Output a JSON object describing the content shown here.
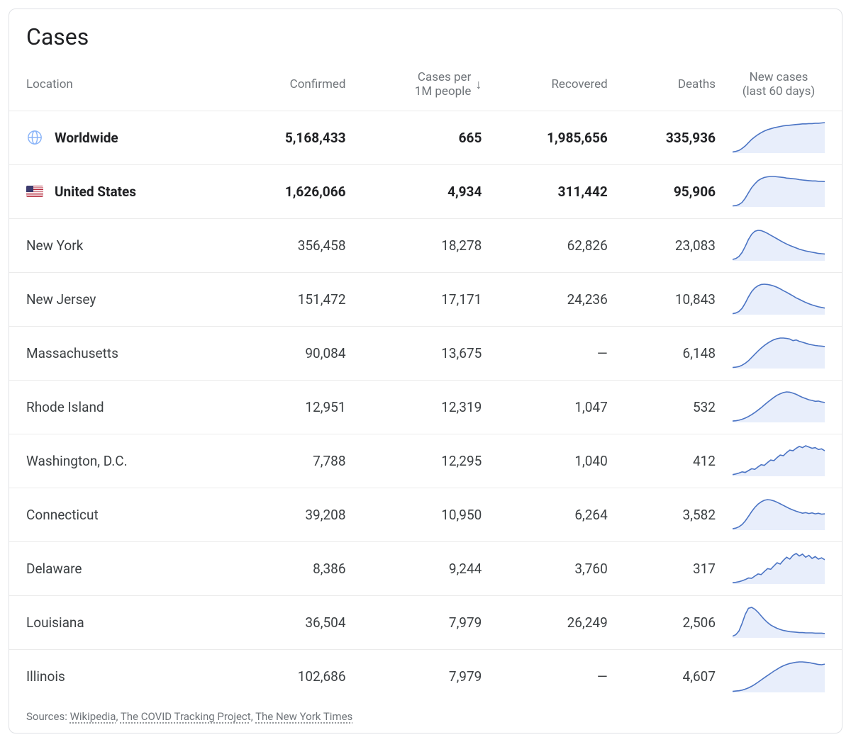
{
  "title": "Cases",
  "columns": {
    "location": "Location",
    "confirmed": "Confirmed",
    "per1m_line1": "Cases per",
    "per1m_line2": "1M people",
    "recovered": "Recovered",
    "deaths": "Deaths",
    "spark_line1": "New cases",
    "spark_line2": "(last 60 days)"
  },
  "sort": {
    "column": "per1m",
    "direction": "desc",
    "arrow": "↓"
  },
  "colors": {
    "text": "#202124",
    "muted": "#70757a",
    "border": "#ebebeb",
    "card_border": "#dfe1e5",
    "spark_stroke": "#4b74c4",
    "spark_fill": "#e8eefb",
    "globe": "#8ab4f8"
  },
  "spark": {
    "width": 130,
    "height": 44,
    "stroke_width": 1.6,
    "fill_opacity": 1
  },
  "rows": [
    {
      "icon": "globe",
      "bold": true,
      "location": "Worldwide",
      "confirmed": "5,168,433",
      "per1m": "665",
      "recovered": "1,985,656",
      "deaths": "335,936",
      "spark": [
        1,
        3,
        6,
        12,
        20,
        30,
        40,
        48,
        55,
        61,
        66,
        70,
        73,
        76,
        78,
        80,
        82,
        83,
        84,
        85,
        86,
        87,
        88,
        88,
        89,
        89,
        90,
        90,
        91,
        92
      ]
    },
    {
      "icon": "flag-us",
      "bold": true,
      "location": "United States",
      "confirmed": "1,626,066",
      "per1m": "4,934",
      "recovered": "311,442",
      "deaths": "95,906",
      "spark": [
        1,
        2,
        5,
        12,
        25,
        42,
        58,
        70,
        80,
        86,
        90,
        92,
        93,
        93,
        92,
        91,
        90,
        88,
        87,
        86,
        85,
        83,
        82,
        81,
        80,
        79,
        79,
        78,
        78,
        77
      ]
    },
    {
      "icon": null,
      "bold": false,
      "location": "New York",
      "confirmed": "356,458",
      "per1m": "18,278",
      "recovered": "62,826",
      "deaths": "23,083",
      "spark": [
        2,
        5,
        12,
        25,
        45,
        68,
        85,
        95,
        98,
        97,
        93,
        88,
        82,
        76,
        70,
        64,
        58,
        53,
        48,
        44,
        40,
        36,
        33,
        30,
        28,
        26,
        24,
        22,
        21,
        20
      ]
    },
    {
      "icon": null,
      "bold": false,
      "location": "New Jersey",
      "confirmed": "151,472",
      "per1m": "17,171",
      "recovered": "24,236",
      "deaths": "10,843",
      "spark": [
        1,
        3,
        8,
        18,
        35,
        55,
        72,
        84,
        91,
        95,
        96,
        95,
        93,
        90,
        86,
        81,
        75,
        70,
        64,
        58,
        52,
        47,
        42,
        37,
        33,
        29,
        26,
        23,
        21,
        19
      ]
    },
    {
      "icon": null,
      "bold": false,
      "location": "Massachusetts",
      "confirmed": "90,084",
      "per1m": "13,675",
      "recovered": "—",
      "deaths": "6,148",
      "spark": [
        1,
        2,
        4,
        8,
        14,
        22,
        32,
        42,
        52,
        61,
        69,
        76,
        82,
        87,
        90,
        92,
        92,
        91,
        89,
        84,
        86,
        82,
        79,
        76,
        73,
        71,
        69,
        68,
        67,
        66
      ]
    },
    {
      "icon": null,
      "bold": false,
      "location": "Rhode Island",
      "confirmed": "12,951",
      "per1m": "12,319",
      "recovered": "1,047",
      "deaths": "532",
      "spark": [
        2,
        3,
        5,
        8,
        12,
        17,
        23,
        30,
        38,
        46,
        55,
        64,
        72,
        80,
        87,
        92,
        96,
        98,
        97,
        94,
        90,
        85,
        80,
        76,
        72,
        70,
        67,
        68,
        65,
        63
      ]
    },
    {
      "icon": null,
      "bold": false,
      "location": "Washington, D.C.",
      "confirmed": "7,788",
      "per1m": "12,295",
      "recovered": "1,040",
      "deaths": "412",
      "spark": [
        3,
        5,
        8,
        12,
        10,
        16,
        22,
        20,
        28,
        35,
        33,
        42,
        50,
        48,
        58,
        66,
        64,
        74,
        82,
        80,
        88,
        94,
        90,
        96,
        92,
        88,
        90,
        84,
        86,
        80
      ]
    },
    {
      "icon": null,
      "bold": false,
      "location": "Connecticut",
      "confirmed": "39,208",
      "per1m": "10,950",
      "recovered": "6,264",
      "deaths": "3,582",
      "spark": [
        2,
        4,
        8,
        15,
        26,
        40,
        55,
        68,
        78,
        85,
        90,
        92,
        91,
        88,
        84,
        79,
        74,
        69,
        64,
        60,
        56,
        53,
        50,
        52,
        49,
        51,
        48,
        50,
        47,
        48
      ]
    },
    {
      "icon": null,
      "bold": false,
      "location": "Delaware",
      "confirmed": "8,386",
      "per1m": "9,244",
      "recovered": "3,760",
      "deaths": "317",
      "spark": [
        2,
        3,
        5,
        8,
        12,
        17,
        16,
        23,
        30,
        28,
        38,
        47,
        45,
        56,
        66,
        62,
        74,
        84,
        78,
        90,
        96,
        88,
        94,
        84,
        90,
        80,
        86,
        78,
        82,
        76
      ]
    },
    {
      "icon": null,
      "bold": false,
      "location": "Louisiana",
      "confirmed": "36,504",
      "per1m": "7,979",
      "recovered": "26,249",
      "deaths": "2,506",
      "spark": [
        3,
        8,
        20,
        45,
        75,
        95,
        98,
        92,
        82,
        70,
        58,
        48,
        40,
        34,
        29,
        25,
        22,
        20,
        18,
        17,
        16,
        15,
        15,
        14,
        14,
        14,
        13,
        13,
        13,
        12
      ]
    },
    {
      "icon": null,
      "bold": false,
      "location": "Illinois",
      "confirmed": "102,686",
      "per1m": "7,979",
      "recovered": "—",
      "deaths": "4,607",
      "spark": [
        1,
        2,
        3,
        5,
        8,
        12,
        17,
        23,
        30,
        37,
        44,
        51,
        58,
        65,
        71,
        77,
        82,
        86,
        89,
        91,
        93,
        94,
        94,
        93,
        92,
        90,
        88,
        86,
        85,
        87
      ]
    }
  ],
  "sources": {
    "prefix": "Sources: ",
    "links": [
      {
        "label": "Wikipedia"
      },
      {
        "label": "The COVID Tracking Project"
      },
      {
        "label": "The New York Times"
      }
    ]
  }
}
